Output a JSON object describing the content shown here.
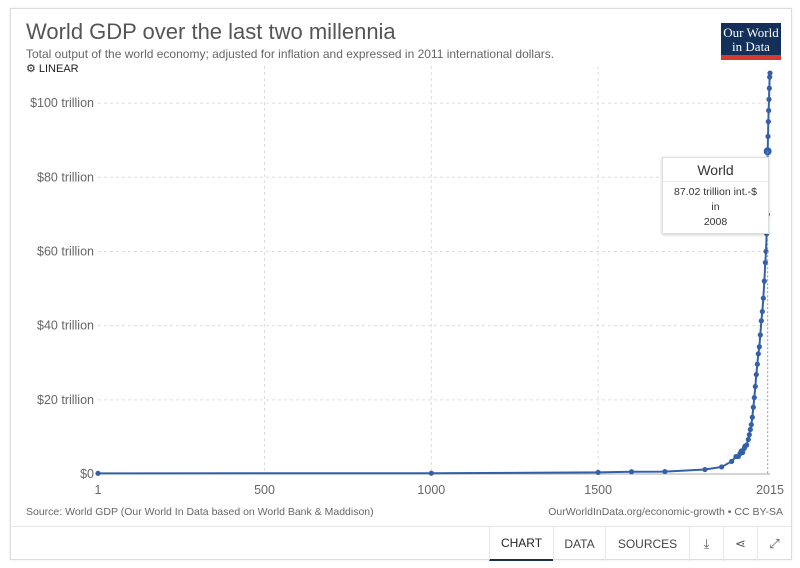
{
  "header": {
    "title": "World GDP over the last two millennia",
    "subtitle": "Total output of the world economy; adjusted for inflation and expressed in 2011 international dollars.",
    "scale_toggle": "LINEAR",
    "logo_line1": "Our World",
    "logo_line2": "in Data"
  },
  "chart_data": {
    "type": "line",
    "title": "World GDP over the last two millennia",
    "xlabel": "",
    "ylabel": "",
    "xlim": [
      1,
      2015
    ],
    "ylim": [
      0,
      110
    ],
    "x_ticks": [
      "1",
      "500",
      "1000",
      "1500",
      "2015"
    ],
    "y_ticks": [
      "$0",
      "$20 trillion",
      "$40 trillion",
      "$60 trillion",
      "$80 trillion",
      "$100 trillion"
    ],
    "grid": true,
    "line_color": "#3360a9",
    "series": [
      {
        "name": "World",
        "x": [
          1,
          1000,
          1500,
          1600,
          1700,
          1820,
          1870,
          1900,
          1913,
          1920,
          1925,
          1929,
          1933,
          1938,
          1940,
          1945,
          1950,
          1953,
          1956,
          1959,
          1962,
          1965,
          1968,
          1971,
          1974,
          1977,
          1980,
          1983,
          1986,
          1989,
          1992,
          1995,
          1998,
          2001,
          2003,
          2005,
          2007,
          2008,
          2009,
          2010,
          2011,
          2012,
          2013,
          2014,
          2015
        ],
        "values": [
          0.18,
          0.21,
          0.43,
          0.6,
          0.65,
          1.2,
          1.9,
          3.4,
          4.7,
          4.7,
          5.5,
          6.2,
          5.8,
          6.9,
          7.5,
          7.8,
          9.3,
          10.6,
          12.0,
          13.3,
          15.3,
          18.0,
          20.6,
          23.6,
          26.8,
          29.6,
          32.4,
          34.3,
          37.5,
          41.3,
          43.8,
          47.4,
          52.0,
          57.0,
          60.0,
          64.8,
          70.0,
          87.02,
          91.0,
          95.0,
          98.0,
          101.0,
          104.0,
          107.0,
          108.1
        ]
      }
    ]
  },
  "tooltip": {
    "title": "World",
    "value": "87.02 trillion int.-$",
    "in": "in",
    "year": "2008"
  },
  "footer": {
    "source": "Source: World GDP (Our World In Data based on World Bank & Maddison)",
    "url": "OurWorldInData.org/economic-growth • CC BY-SA"
  },
  "tabs": {
    "chart": "CHART",
    "data": "DATA",
    "sources": "SOURCES"
  }
}
